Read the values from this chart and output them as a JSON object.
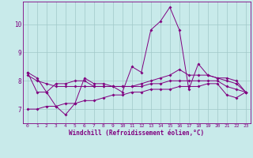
{
  "xlabel": "Windchill (Refroidissement éolien,°C)",
  "bg_color": "#c8eaea",
  "line_color": "#800080",
  "grid_color": "#a0c8c8",
  "text_color": "#800080",
  "xlim": [
    -0.5,
    23.5
  ],
  "ylim": [
    6.5,
    10.8
  ],
  "xticks": [
    0,
    1,
    2,
    3,
    4,
    5,
    6,
    7,
    8,
    9,
    10,
    11,
    12,
    13,
    14,
    15,
    16,
    17,
    18,
    19,
    20,
    21,
    22,
    23
  ],
  "yticks": [
    7,
    8,
    9,
    10
  ],
  "series": [
    [
      8.3,
      8.1,
      7.6,
      7.1,
      6.8,
      7.2,
      8.1,
      7.9,
      7.9,
      7.8,
      7.6,
      8.5,
      8.3,
      9.8,
      10.1,
      10.6,
      9.8,
      7.7,
      8.6,
      8.2,
      8.1,
      8.1,
      8.0,
      7.6
    ],
    [
      8.2,
      8.0,
      7.9,
      7.8,
      7.8,
      7.8,
      7.8,
      7.8,
      7.8,
      7.8,
      7.8,
      7.8,
      7.8,
      7.9,
      7.9,
      8.0,
      8.0,
      8.0,
      8.0,
      8.0,
      8.0,
      7.8,
      7.7,
      7.6
    ],
    [
      8.3,
      7.6,
      7.6,
      7.9,
      7.9,
      8.0,
      8.0,
      7.8,
      7.8,
      7.8,
      7.8,
      7.8,
      7.9,
      8.0,
      8.1,
      8.2,
      8.4,
      8.2,
      8.2,
      8.2,
      8.1,
      8.0,
      7.9,
      7.6
    ],
    [
      7.0,
      7.0,
      7.1,
      7.1,
      7.2,
      7.2,
      7.3,
      7.3,
      7.4,
      7.5,
      7.5,
      7.6,
      7.6,
      7.7,
      7.7,
      7.7,
      7.8,
      7.8,
      7.8,
      7.9,
      7.9,
      7.5,
      7.4,
      7.6
    ]
  ]
}
